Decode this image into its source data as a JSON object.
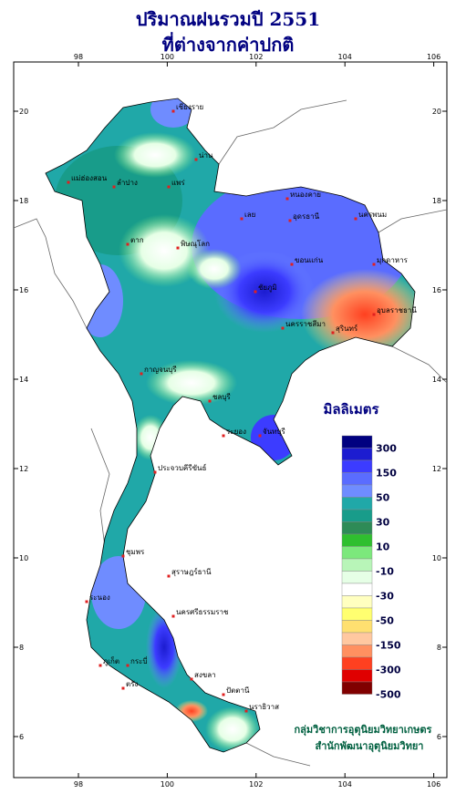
{
  "header": {
    "title": "ปริมาณฝนรวมปี 2551",
    "subtitle": "ที่ต่างจากค่าปกติ"
  },
  "axes": {
    "xticks": [
      98,
      100,
      102,
      104,
      106
    ],
    "yticks": [
      6,
      8,
      10,
      12,
      14,
      16,
      18,
      20
    ]
  },
  "legend": {
    "title": "มิลลิเมตร",
    "labels": [
      "300",
      "150",
      "50",
      "30",
      "10",
      "-10",
      "-30",
      "-50",
      "-150",
      "-300",
      "-500"
    ],
    "colors": [
      "#000080",
      "#1c1cd0",
      "#3c3cff",
      "#5a6cff",
      "#6f8cff",
      "#20a8a8",
      "#189c8a",
      "#2e8b57",
      "#2fbf2f",
      "#7ce87c",
      "#b8f5b8",
      "#e6ffe6",
      "#ffffff",
      "#ffffc0",
      "#ffff70",
      "#ffe070",
      "#ffc8a0",
      "#ff9060",
      "#ff4020",
      "#e00000",
      "#800000"
    ]
  },
  "cities": [
    "เชียงราย",
    "น่าน",
    "แม่ฮ่องสอน",
    "ลำปาง",
    "แพร่",
    "ตาก",
    "พิษณุโลก",
    "หนองคาย",
    "อุดรธานี",
    "นครพนม",
    "เลย",
    "ขอนแก่น",
    "ชัยภูมิ",
    "มุกดาหาร",
    "อุบลราชธานี",
    "นครราชสีมา",
    "สุรินทร์",
    "กาญจนบุรี",
    "ชลบุรี",
    "ระยอง",
    "จันทบุรี",
    "ประจวบคีรีขันธ์",
    "ชุมพร",
    "ระนอง",
    "สุราษฎร์ธานี",
    "นครศรีธรรมราช",
    "ภูเก็ต",
    "กระบี่",
    "ตรัง",
    "สงขลา",
    "ปัตตานี",
    "นราธิวาส"
  ],
  "footer": {
    "line1": "กลุ่มวิชาการอุตุนิยมวิทยาเกษตร",
    "line2": "สำนักพัฒนาอุตุนิยมวิทยา"
  }
}
